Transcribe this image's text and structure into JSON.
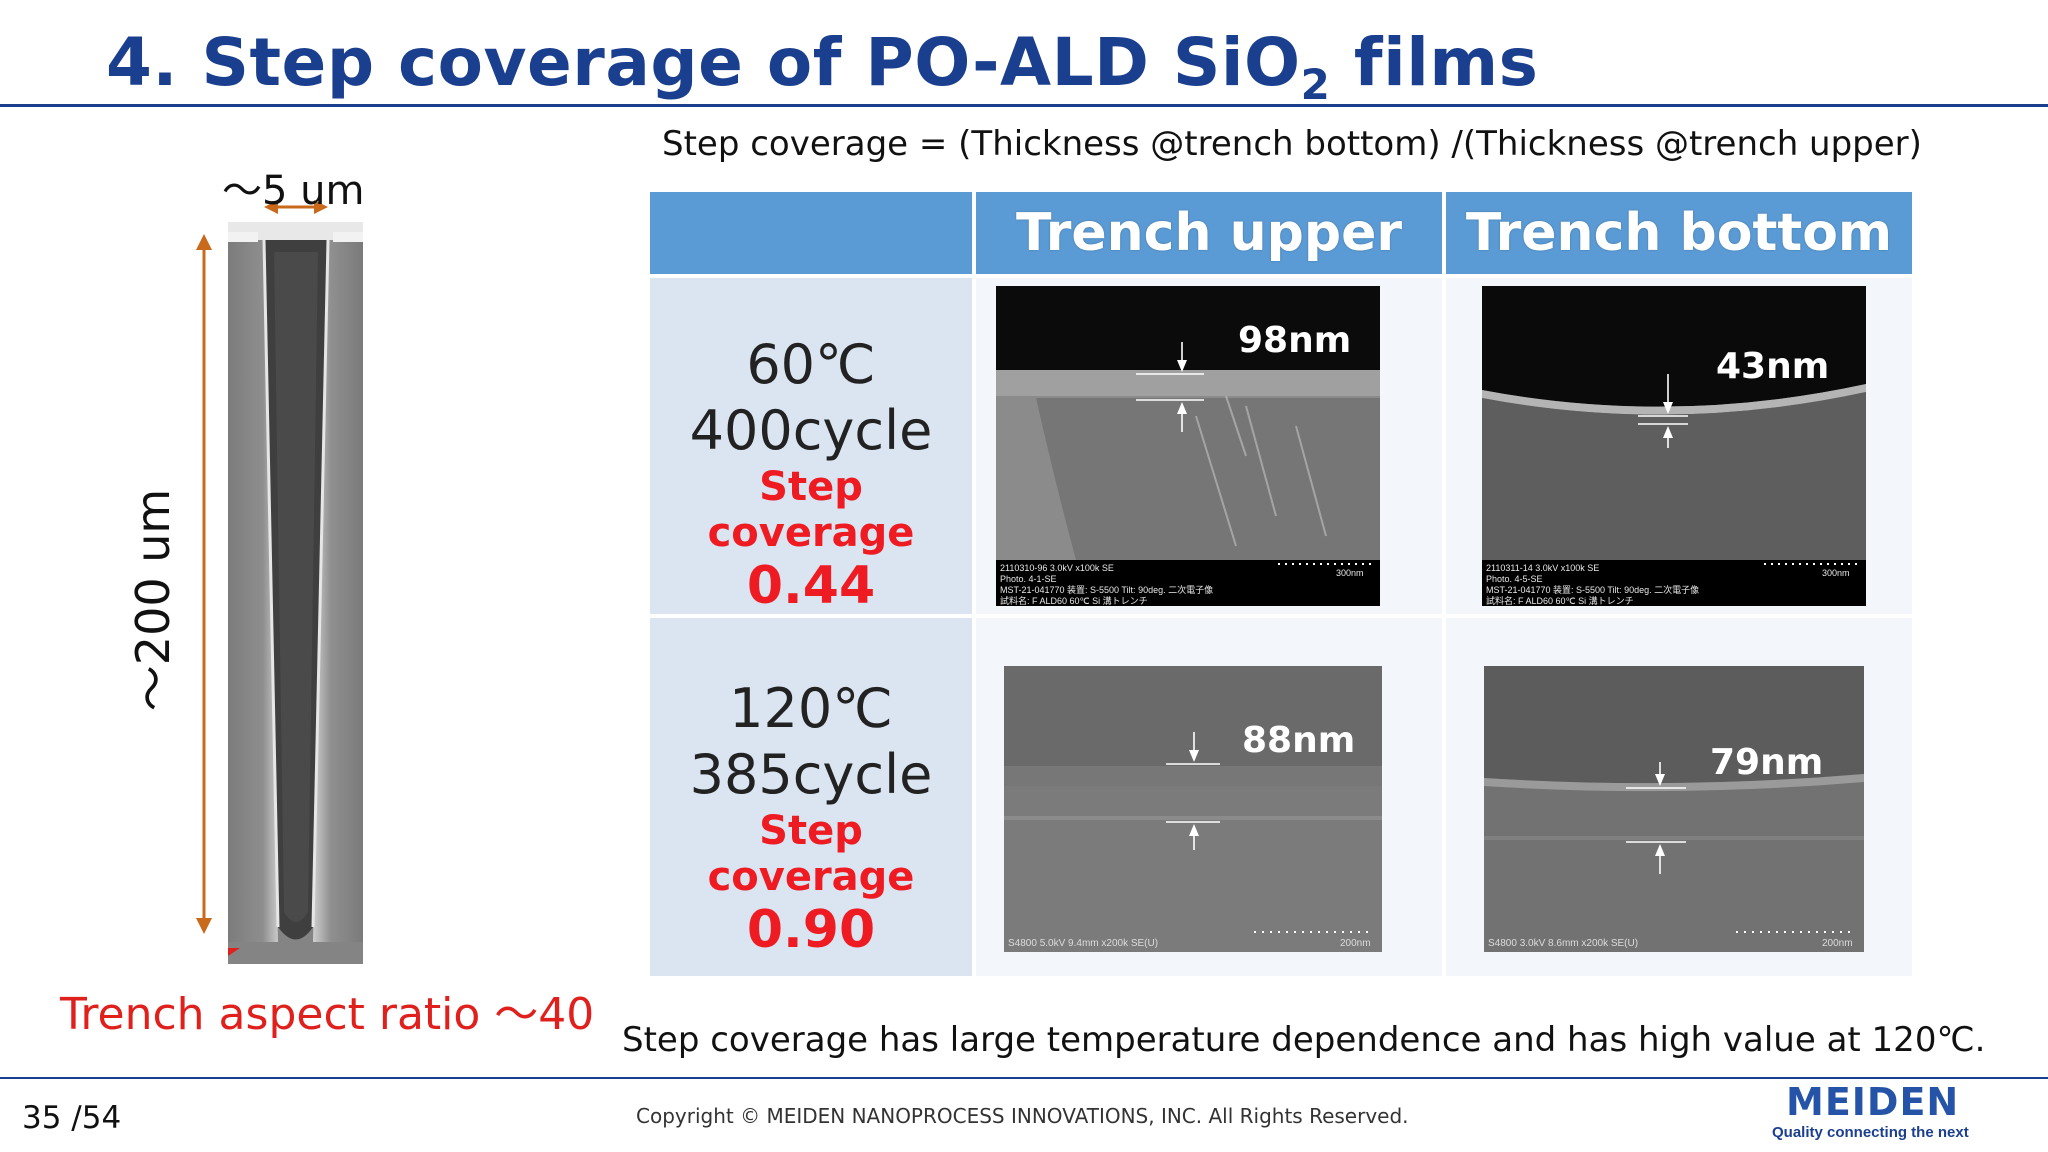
{
  "slide": {
    "title_main": "4. Step coverage of  PO-ALD SiO",
    "title_sub": "2",
    "title_end": " films",
    "formula": "Step coverage  = (Thickness @trench bottom) /(Thickness @trench upper)",
    "trench_width_label": "～5 um",
    "trench_depth_label": "～200 um",
    "aspect_ratio_label": "Trench aspect ratio ～40",
    "conclusion": "Step coverage has large temperature dependence and has high value at 120℃.",
    "page_number": "35 /54",
    "copyright": "Copyright © MEIDEN NANOPROCESS INNOVATIONS, INC. All Rights Reserved.",
    "brand": "MEIDEN",
    "tagline": "Quality connecting the next"
  },
  "table": {
    "headers": [
      "",
      "Trench upper",
      "Trench bottom"
    ],
    "rows": [
      {
        "temperature": "60℃",
        "cycles": "400cycle",
        "step_coverage_label": "Step coverage",
        "step_coverage_value": "0.44",
        "upper_thickness": "98nm",
        "bottom_thickness": "43nm",
        "upper_caption": [
          "2110310-96 3.0kV x100k SE",
          "Photo. 4-1-SE",
          "MST-21-041770   装置: S-5500  Tilt: 90deg.   二次電子像",
          "試料名: F ALD60 60℃ Si 溝トレンチ"
        ],
        "upper_scale": "300nm",
        "bottom_caption": [
          "2110311-14 3.0kV x100k SE",
          "Photo. 4-5-SE",
          "MST-21-041770   装置: S-5500  Tilt: 90deg.   二次電子像",
          "試料名: F ALD60 60℃ Si 溝トレンチ"
        ],
        "bottom_scale": "300nm"
      },
      {
        "temperature": "120℃",
        "cycles": "385cycle",
        "step_coverage_label": "Step coverage",
        "step_coverage_value": "0.90",
        "upper_thickness": "88nm",
        "bottom_thickness": "79nm",
        "upper_caption": [
          "S4800 5.0kV 9.4mm x200k SE(U)"
        ],
        "upper_scale": "200nm",
        "bottom_caption": [
          "S4800 3.0kV 8.6mm x200k SE(U)"
        ],
        "bottom_scale": "200nm"
      }
    ]
  },
  "colors": {
    "title_blue": "#1b3f8f",
    "header_blue": "#5b9bd5",
    "accent_red": "#ee1c22",
    "dimension_orange": "#c8691c"
  }
}
